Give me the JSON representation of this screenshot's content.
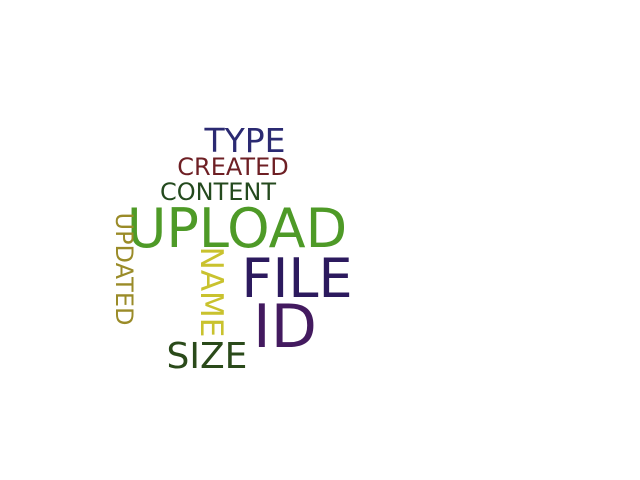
{
  "cloud": {
    "words": [
      {
        "id": "type",
        "text": "TYPE",
        "color": "#2b2a72",
        "orientation": "horizontal"
      },
      {
        "id": "created",
        "text": "CREATED",
        "color": "#6e1f24",
        "orientation": "horizontal"
      },
      {
        "id": "content",
        "text": "CONTENT",
        "color": "#244a1e",
        "orientation": "horizontal"
      },
      {
        "id": "upload",
        "text": "UPLOAD",
        "color": "#4e9a27",
        "orientation": "horizontal"
      },
      {
        "id": "file",
        "text": "FILE",
        "color": "#2c1a5e",
        "orientation": "horizontal"
      },
      {
        "id": "id",
        "text": "ID",
        "color": "#431a5f",
        "orientation": "horizontal"
      },
      {
        "id": "size",
        "text": "SIZE",
        "color": "#2a4a1a",
        "orientation": "horizontal"
      },
      {
        "id": "name",
        "text": "NAME",
        "color": "#c9c22e",
        "orientation": "vertical"
      },
      {
        "id": "updated",
        "text": "UPDATED",
        "color": "#9a8b28",
        "orientation": "vertical"
      }
    ]
  }
}
